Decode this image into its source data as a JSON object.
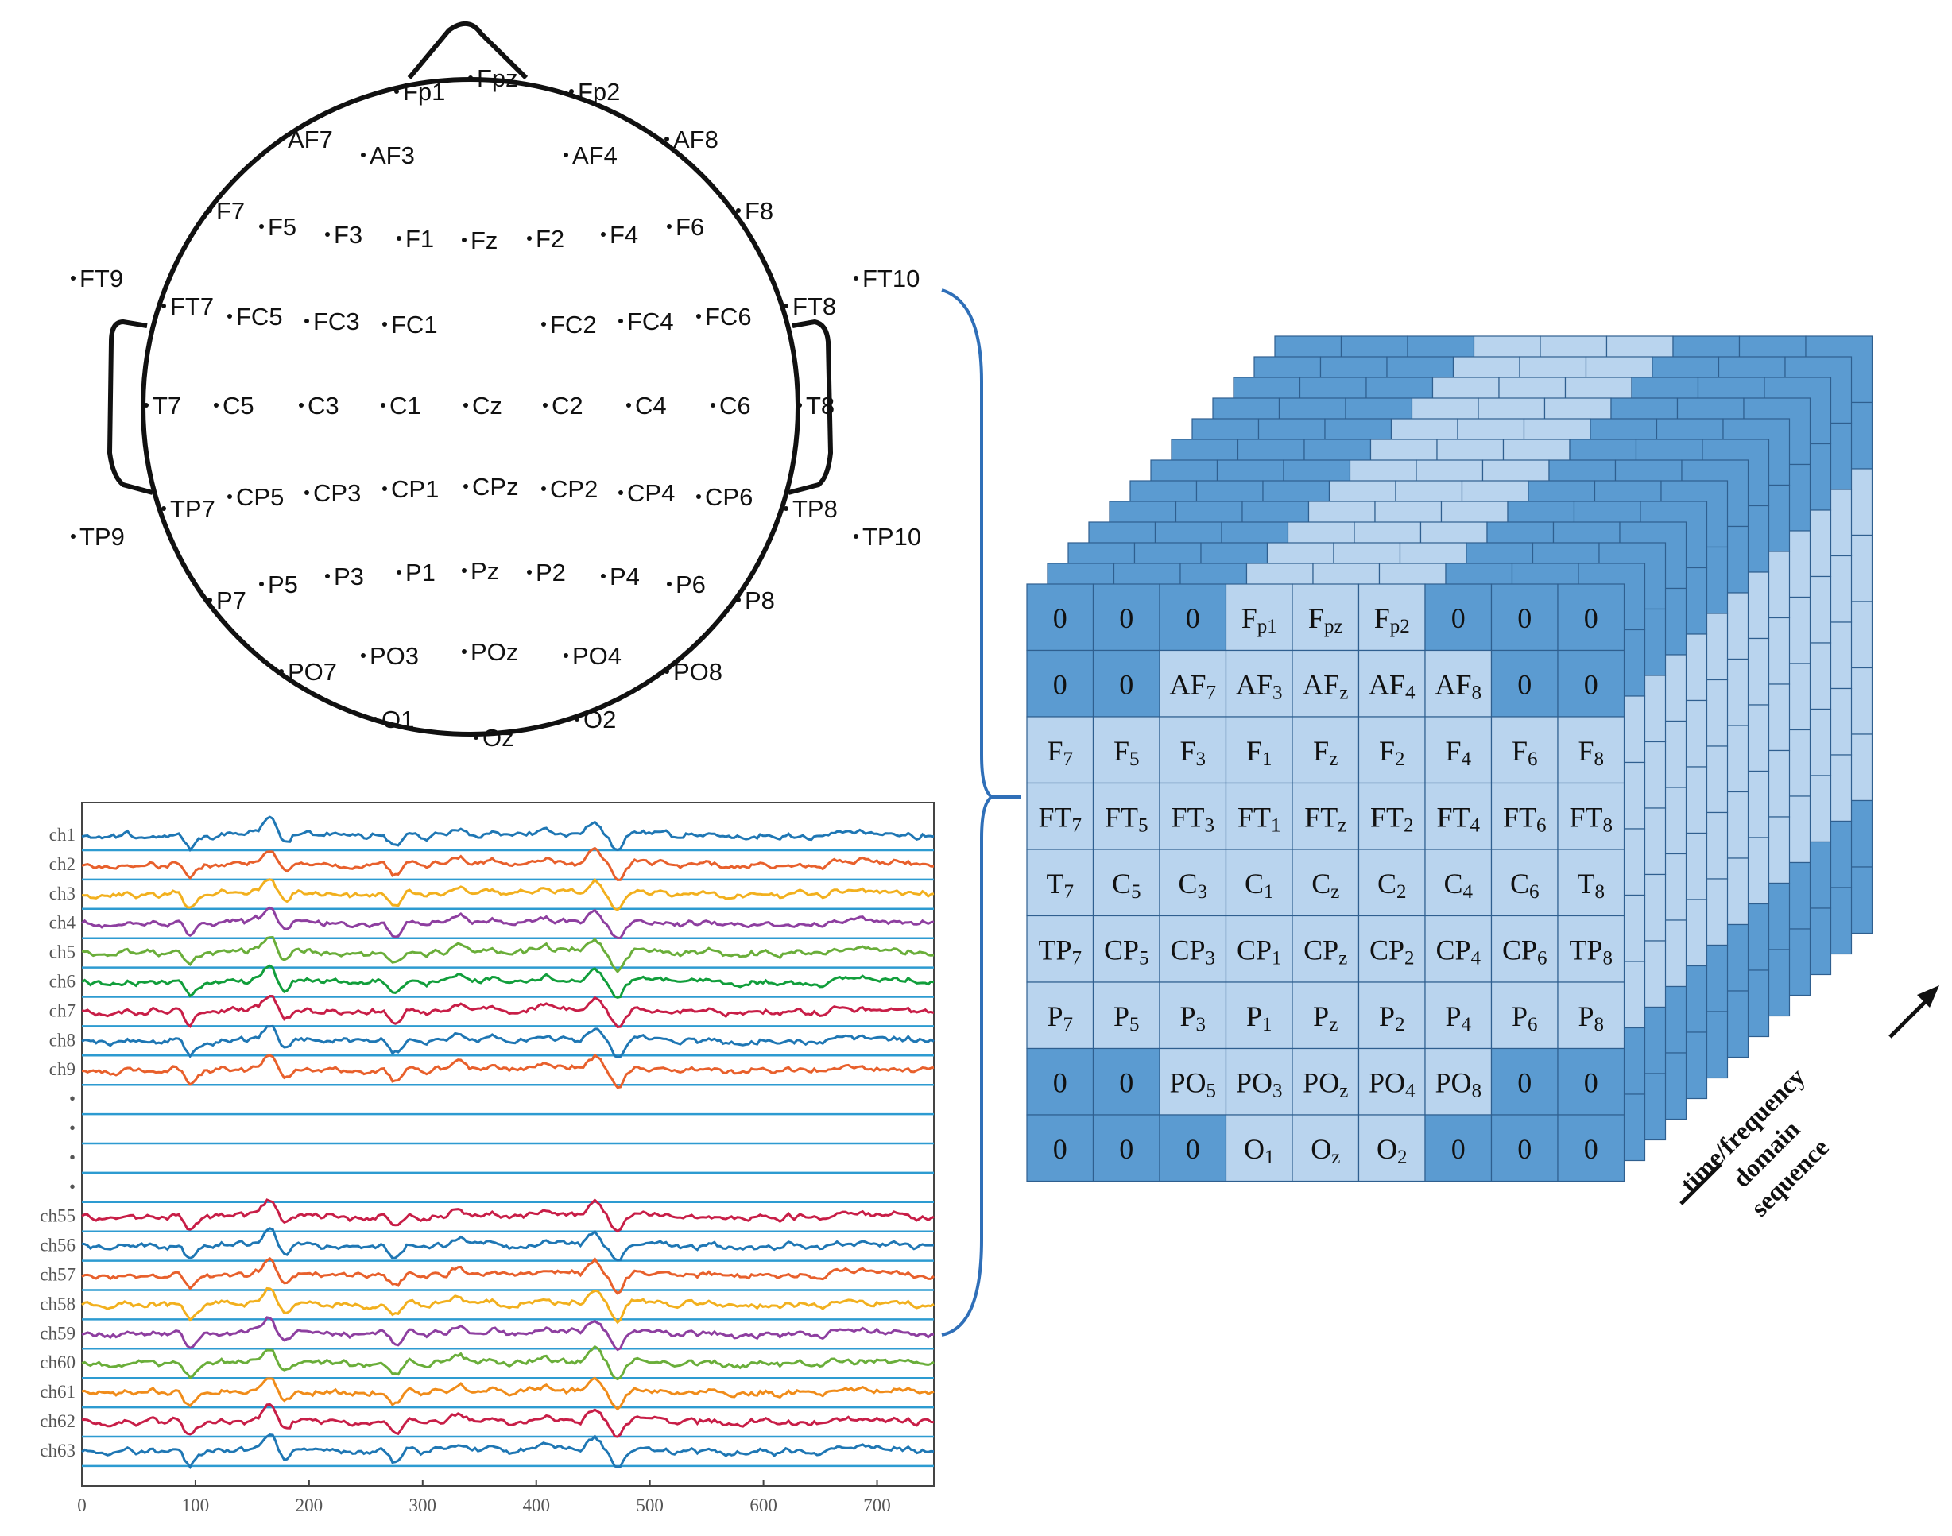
{
  "colors": {
    "dark_cell": "#5b9bd1",
    "light_cell": "#b9d4ee",
    "grid_line": "#2f5f8f",
    "bracket": "#2f6fb8",
    "baseline": "#2d9bd1",
    "series": [
      "#1f77b4",
      "#e8602c",
      "#f2b01e",
      "#8e3fa0",
      "#6aae3a",
      "#119e3b",
      "#c81e47",
      "#1f77b4",
      "#e8602c"
    ]
  },
  "head_map": {
    "electrodes": [
      {
        "label": "Fp1",
        "x": 505,
        "y": 115
      },
      {
        "label": "Fpz",
        "x": 598,
        "y": 98
      },
      {
        "label": "Fp2",
        "x": 725,
        "y": 115
      },
      {
        "label": "AF7",
        "x": 360,
        "y": 175
      },
      {
        "label": "AF3",
        "x": 463,
        "y": 195
      },
      {
        "label": "AF4",
        "x": 718,
        "y": 195
      },
      {
        "label": "AF8",
        "x": 845,
        "y": 175
      },
      {
        "label": "F7",
        "x": 270,
        "y": 265
      },
      {
        "label": "F5",
        "x": 335,
        "y": 285
      },
      {
        "label": "F3",
        "x": 418,
        "y": 295
      },
      {
        "label": "F1",
        "x": 508,
        "y": 300
      },
      {
        "label": "Fz",
        "x": 590,
        "y": 302
      },
      {
        "label": "F2",
        "x": 672,
        "y": 300
      },
      {
        "label": "F4",
        "x": 765,
        "y": 295
      },
      {
        "label": "F6",
        "x": 848,
        "y": 285
      },
      {
        "label": "F8",
        "x": 935,
        "y": 265
      },
      {
        "label": "FT9",
        "x": 98,
        "y": 350
      },
      {
        "label": "FT7",
        "x": 212,
        "y": 385
      },
      {
        "label": "FC5",
        "x": 295,
        "y": 398
      },
      {
        "label": "FC3",
        "x": 392,
        "y": 404
      },
      {
        "label": "FC1",
        "x": 490,
        "y": 408
      },
      {
        "label": "FC2",
        "x": 690,
        "y": 408
      },
      {
        "label": "FC4",
        "x": 787,
        "y": 404
      },
      {
        "label": "FC6",
        "x": 885,
        "y": 398
      },
      {
        "label": "FT8",
        "x": 995,
        "y": 385
      },
      {
        "label": "FT10",
        "x": 1083,
        "y": 350
      },
      {
        "label": "T7",
        "x": 190,
        "y": 510
      },
      {
        "label": "C5",
        "x": 278,
        "y": 510
      },
      {
        "label": "C3",
        "x": 385,
        "y": 510
      },
      {
        "label": "C1",
        "x": 488,
        "y": 510
      },
      {
        "label": "Cz",
        "x": 592,
        "y": 510
      },
      {
        "label": "C2",
        "x": 692,
        "y": 510
      },
      {
        "label": "C4",
        "x": 797,
        "y": 510
      },
      {
        "label": "C6",
        "x": 903,
        "y": 510
      },
      {
        "label": "T8",
        "x": 1012,
        "y": 510
      },
      {
        "label": "TP9",
        "x": 98,
        "y": 675
      },
      {
        "label": "TP7",
        "x": 212,
        "y": 640
      },
      {
        "label": "CP5",
        "x": 295,
        "y": 625
      },
      {
        "label": "CP3",
        "x": 392,
        "y": 620
      },
      {
        "label": "CP1",
        "x": 490,
        "y": 615
      },
      {
        "label": "CPz",
        "x": 592,
        "y": 612
      },
      {
        "label": "CP2",
        "x": 690,
        "y": 615
      },
      {
        "label": "CP4",
        "x": 787,
        "y": 620
      },
      {
        "label": "CP6",
        "x": 885,
        "y": 625
      },
      {
        "label": "TP8",
        "x": 995,
        "y": 640
      },
      {
        "label": "TP10",
        "x": 1083,
        "y": 675
      },
      {
        "label": "P7",
        "x": 270,
        "y": 755
      },
      {
        "label": "P5",
        "x": 335,
        "y": 735
      },
      {
        "label": "P3",
        "x": 418,
        "y": 725
      },
      {
        "label": "P1",
        "x": 508,
        "y": 720
      },
      {
        "label": "Pz",
        "x": 590,
        "y": 718
      },
      {
        "label": "P2",
        "x": 672,
        "y": 720
      },
      {
        "label": "P4",
        "x": 765,
        "y": 725
      },
      {
        "label": "P6",
        "x": 848,
        "y": 735
      },
      {
        "label": "P8",
        "x": 935,
        "y": 755
      },
      {
        "label": "PO7",
        "x": 360,
        "y": 845
      },
      {
        "label": "PO3",
        "x": 463,
        "y": 825
      },
      {
        "label": "POz",
        "x": 590,
        "y": 820
      },
      {
        "label": "PO4",
        "x": 718,
        "y": 825
      },
      {
        "label": "PO8",
        "x": 845,
        "y": 845
      },
      {
        "label": "O1",
        "x": 478,
        "y": 905
      },
      {
        "label": "Oz",
        "x": 605,
        "y": 928
      },
      {
        "label": "O2",
        "x": 732,
        "y": 905
      }
    ]
  },
  "eeg_plot": {
    "channels": [
      "ch1",
      "ch2",
      "ch3",
      "ch4",
      "ch5",
      "ch6",
      "ch7",
      "ch8",
      "ch9",
      "•",
      "•",
      "•",
      "•",
      "ch55",
      "ch56",
      "ch57",
      "ch58",
      "ch59",
      "ch60",
      "ch61",
      "ch62",
      "ch63"
    ],
    "x_ticks": [
      "0",
      "100",
      "200",
      "300",
      "400",
      "500",
      "600",
      "700"
    ],
    "x_range": [
      0,
      750
    ]
  },
  "grid": {
    "rows": [
      [
        [
          "0",
          ""
        ],
        [
          "0",
          ""
        ],
        [
          "0",
          ""
        ],
        [
          "F",
          "p1"
        ],
        [
          "F",
          "pz"
        ],
        [
          "F",
          "p2"
        ],
        [
          "0",
          ""
        ],
        [
          "0",
          ""
        ],
        [
          "0",
          ""
        ]
      ],
      [
        [
          "0",
          ""
        ],
        [
          "0",
          ""
        ],
        [
          "AF",
          "7"
        ],
        [
          "AF",
          "3"
        ],
        [
          "AF",
          "z"
        ],
        [
          "AF",
          "4"
        ],
        [
          "AF",
          "8"
        ],
        [
          "0",
          ""
        ],
        [
          "0",
          ""
        ]
      ],
      [
        [
          "F",
          "7"
        ],
        [
          "F",
          "5"
        ],
        [
          "F",
          "3"
        ],
        [
          "F",
          "1"
        ],
        [
          "F",
          "z"
        ],
        [
          "F",
          "2"
        ],
        [
          "F",
          "4"
        ],
        [
          "F",
          "6"
        ],
        [
          "F",
          "8"
        ]
      ],
      [
        [
          "FT",
          "7"
        ],
        [
          "FT",
          "5"
        ],
        [
          "FT",
          "3"
        ],
        [
          "FT",
          "1"
        ],
        [
          "FT",
          "z"
        ],
        [
          "FT",
          "2"
        ],
        [
          "FT",
          "4"
        ],
        [
          "FT",
          "6"
        ],
        [
          "FT",
          "8"
        ]
      ],
      [
        [
          "T",
          "7"
        ],
        [
          "C",
          "5"
        ],
        [
          "C",
          "3"
        ],
        [
          "C",
          "1"
        ],
        [
          "C",
          "z"
        ],
        [
          "C",
          "2"
        ],
        [
          "C",
          "4"
        ],
        [
          "C",
          "6"
        ],
        [
          "T",
          "8"
        ]
      ],
      [
        [
          "TP",
          "7"
        ],
        [
          "CP",
          "5"
        ],
        [
          "CP",
          "3"
        ],
        [
          "CP",
          "1"
        ],
        [
          "CP",
          "z"
        ],
        [
          "CP",
          "2"
        ],
        [
          "CP",
          "4"
        ],
        [
          "CP",
          "6"
        ],
        [
          "TP",
          "8"
        ]
      ],
      [
        [
          "P",
          "7"
        ],
        [
          "P",
          "5"
        ],
        [
          "P",
          "3"
        ],
        [
          "P",
          "1"
        ],
        [
          "P",
          "z"
        ],
        [
          "P",
          "2"
        ],
        [
          "P",
          "4"
        ],
        [
          "P",
          "6"
        ],
        [
          "P",
          "8"
        ]
      ],
      [
        [
          "0",
          ""
        ],
        [
          "0",
          ""
        ],
        [
          "PO",
          "5"
        ],
        [
          "PO",
          "3"
        ],
        [
          "PO",
          "z"
        ],
        [
          "PO",
          "4"
        ],
        [
          "PO",
          "8"
        ],
        [
          "0",
          ""
        ],
        [
          "0",
          ""
        ]
      ],
      [
        [
          "0",
          ""
        ],
        [
          "0",
          ""
        ],
        [
          "0",
          ""
        ],
        [
          "O",
          "1"
        ],
        [
          "O",
          "z"
        ],
        [
          "O",
          "2"
        ],
        [
          "0",
          ""
        ],
        [
          "0",
          ""
        ],
        [
          "0",
          ""
        ]
      ]
    ],
    "axis_label": [
      "time/frequency",
      "domain",
      "sequence"
    ]
  }
}
